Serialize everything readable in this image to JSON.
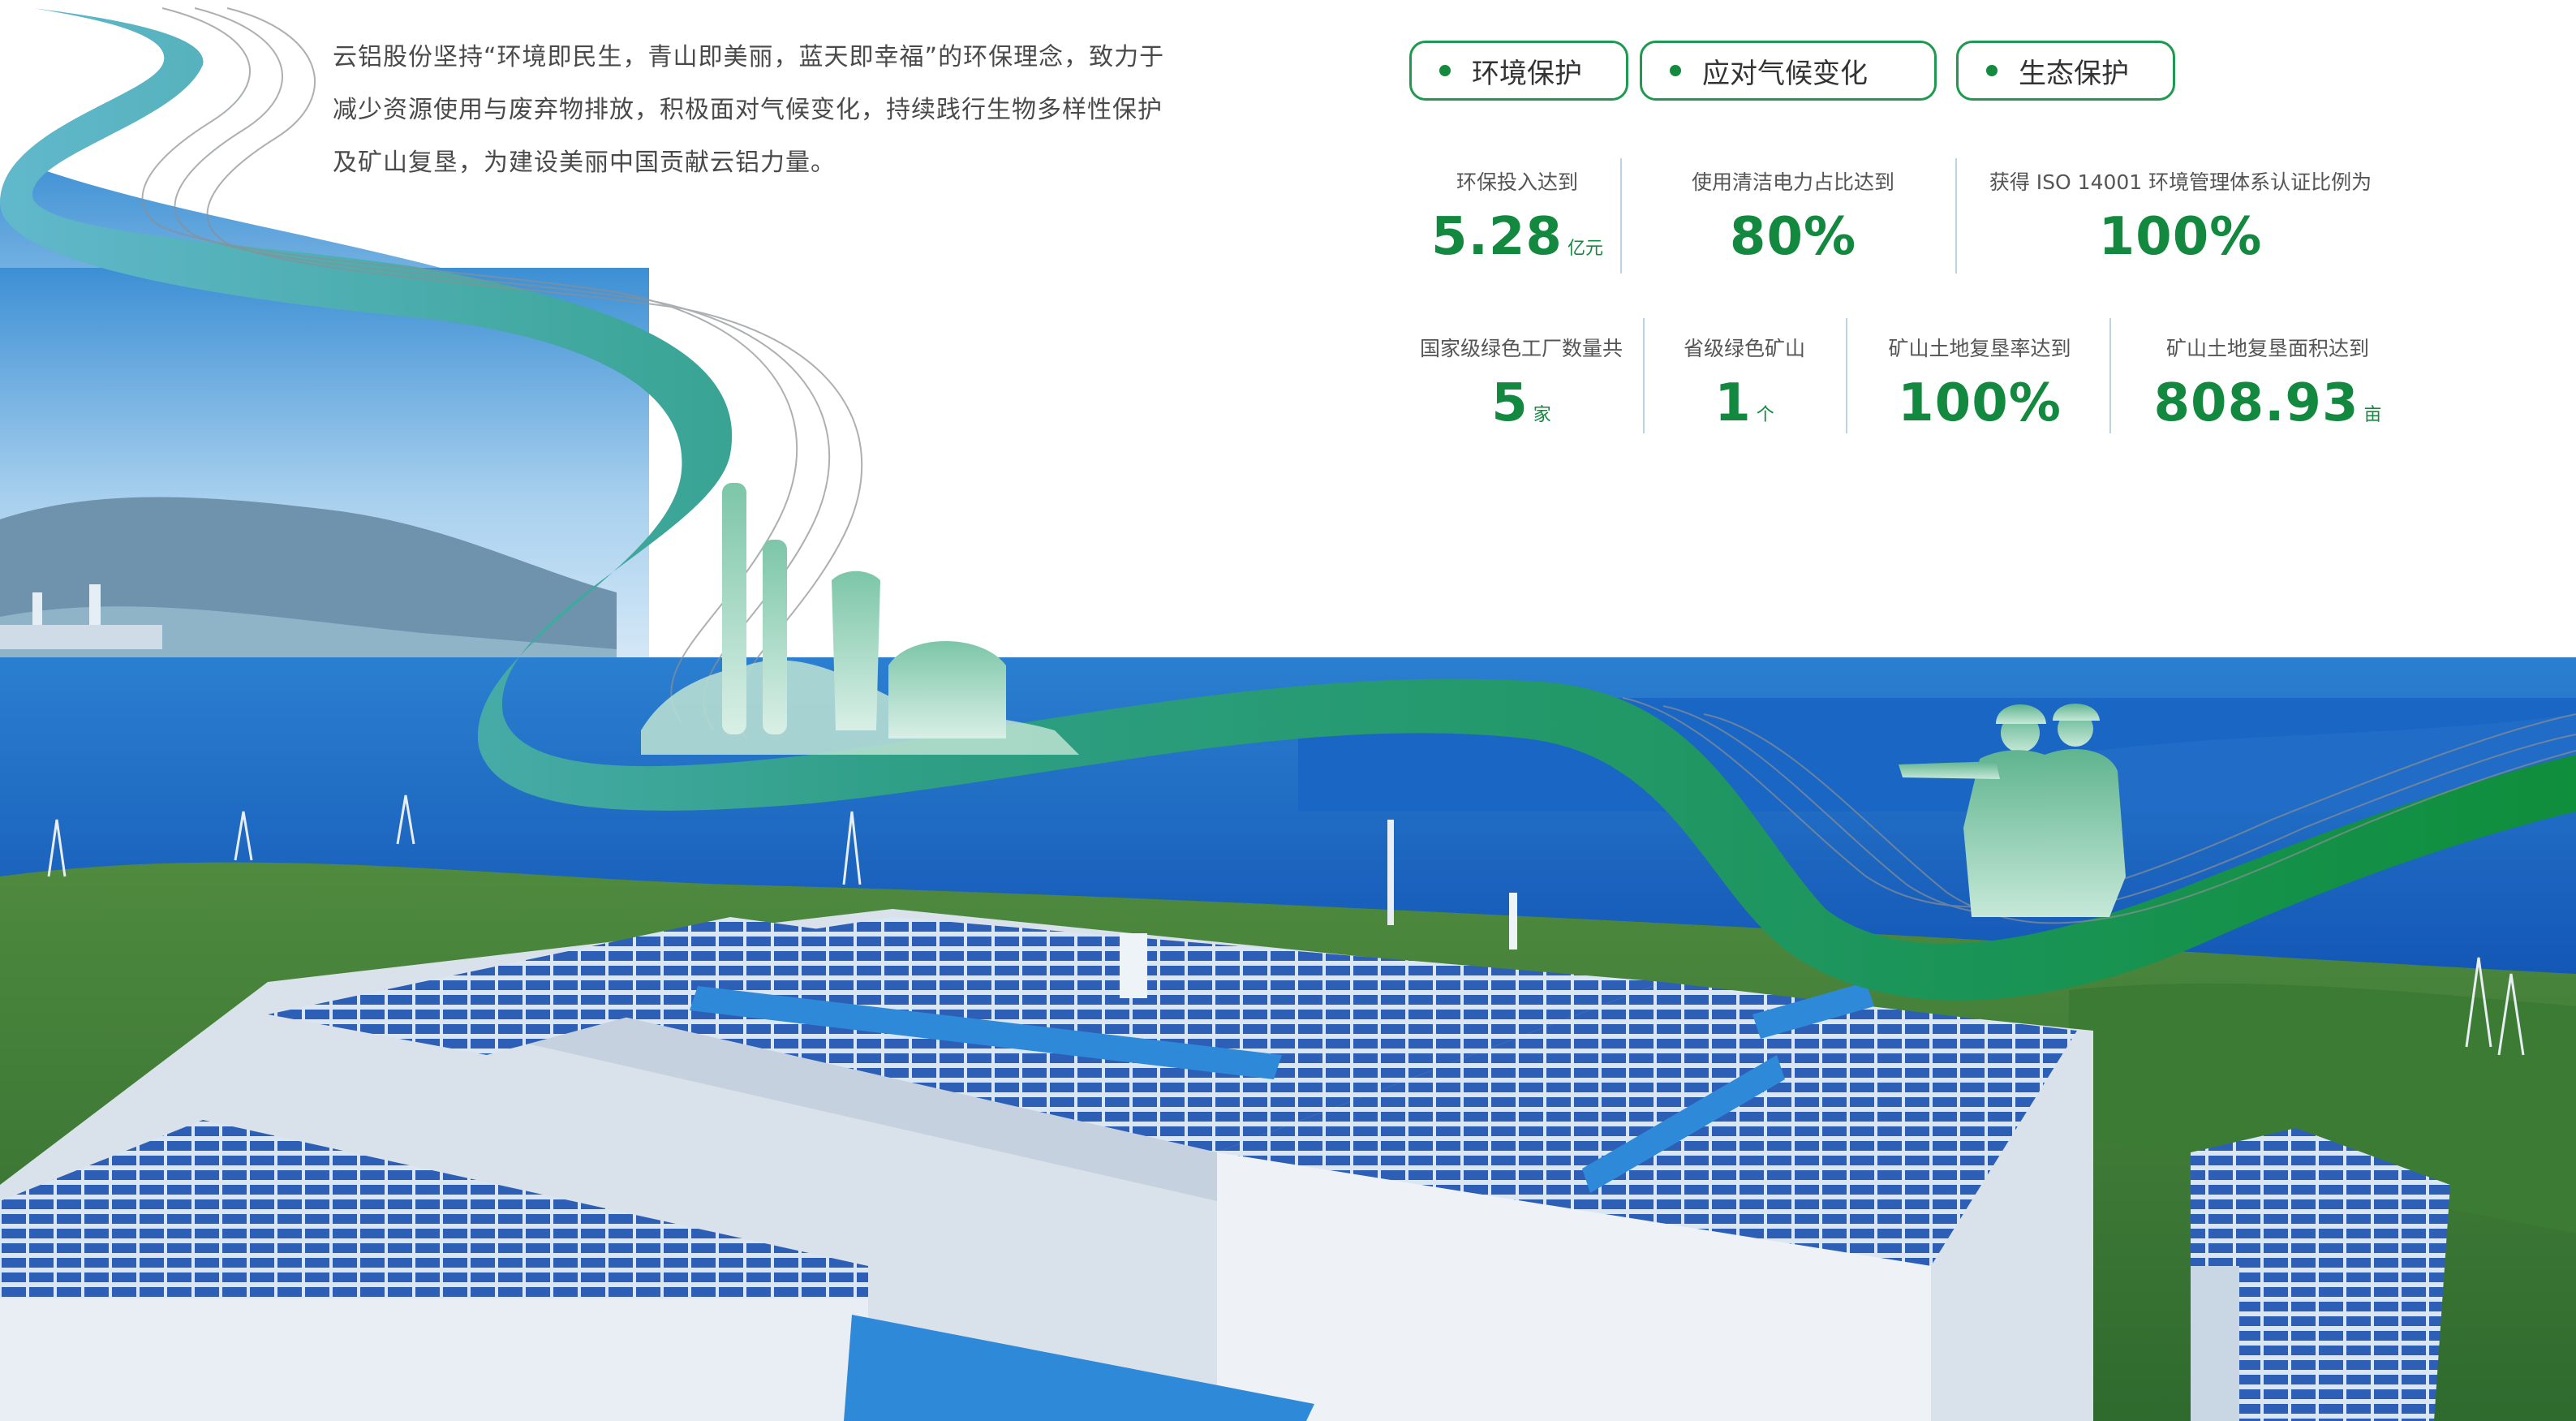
{
  "intro": "云铝股份坚持“环境即民生，青山即美丽，蓝天即幸福”的环保理念，致力于减少资源使用与废弃物排放，积极面对气候变化，持续践行生物多样性保护及矿山复垦，为建设美丽中国贡献云铝力量。",
  "tags": [
    "环境保护",
    "应对气候变化",
    "生态保护"
  ],
  "stats_row1": [
    {
      "label": "环保投入达到",
      "value": "5.28",
      "unit": "亿元"
    },
    {
      "label": "使用清洁电力占比达到",
      "value": "80%",
      "unit": ""
    },
    {
      "label": "获得 ISO 14001 环境管理体系认证比例为",
      "value": "100%",
      "unit": ""
    }
  ],
  "stats_row2": [
    {
      "label": "国家级绿色工厂数量共",
      "value": "5",
      "unit": "家"
    },
    {
      "label": "省级绿色矿山",
      "value": "1",
      "unit": "个"
    },
    {
      "label": "矿山土地复垦率达到",
      "value": "100%",
      "unit": ""
    },
    {
      "label": "矿山土地复垦面积达到",
      "value": "808.93",
      "unit": "亩"
    }
  ],
  "colors": {
    "accent": "#13883f",
    "ribbon_start": "#5fb7c8",
    "ribbon_end": "#11913f",
    "sky": "#3f93d3",
    "lake": "#1662c0"
  }
}
